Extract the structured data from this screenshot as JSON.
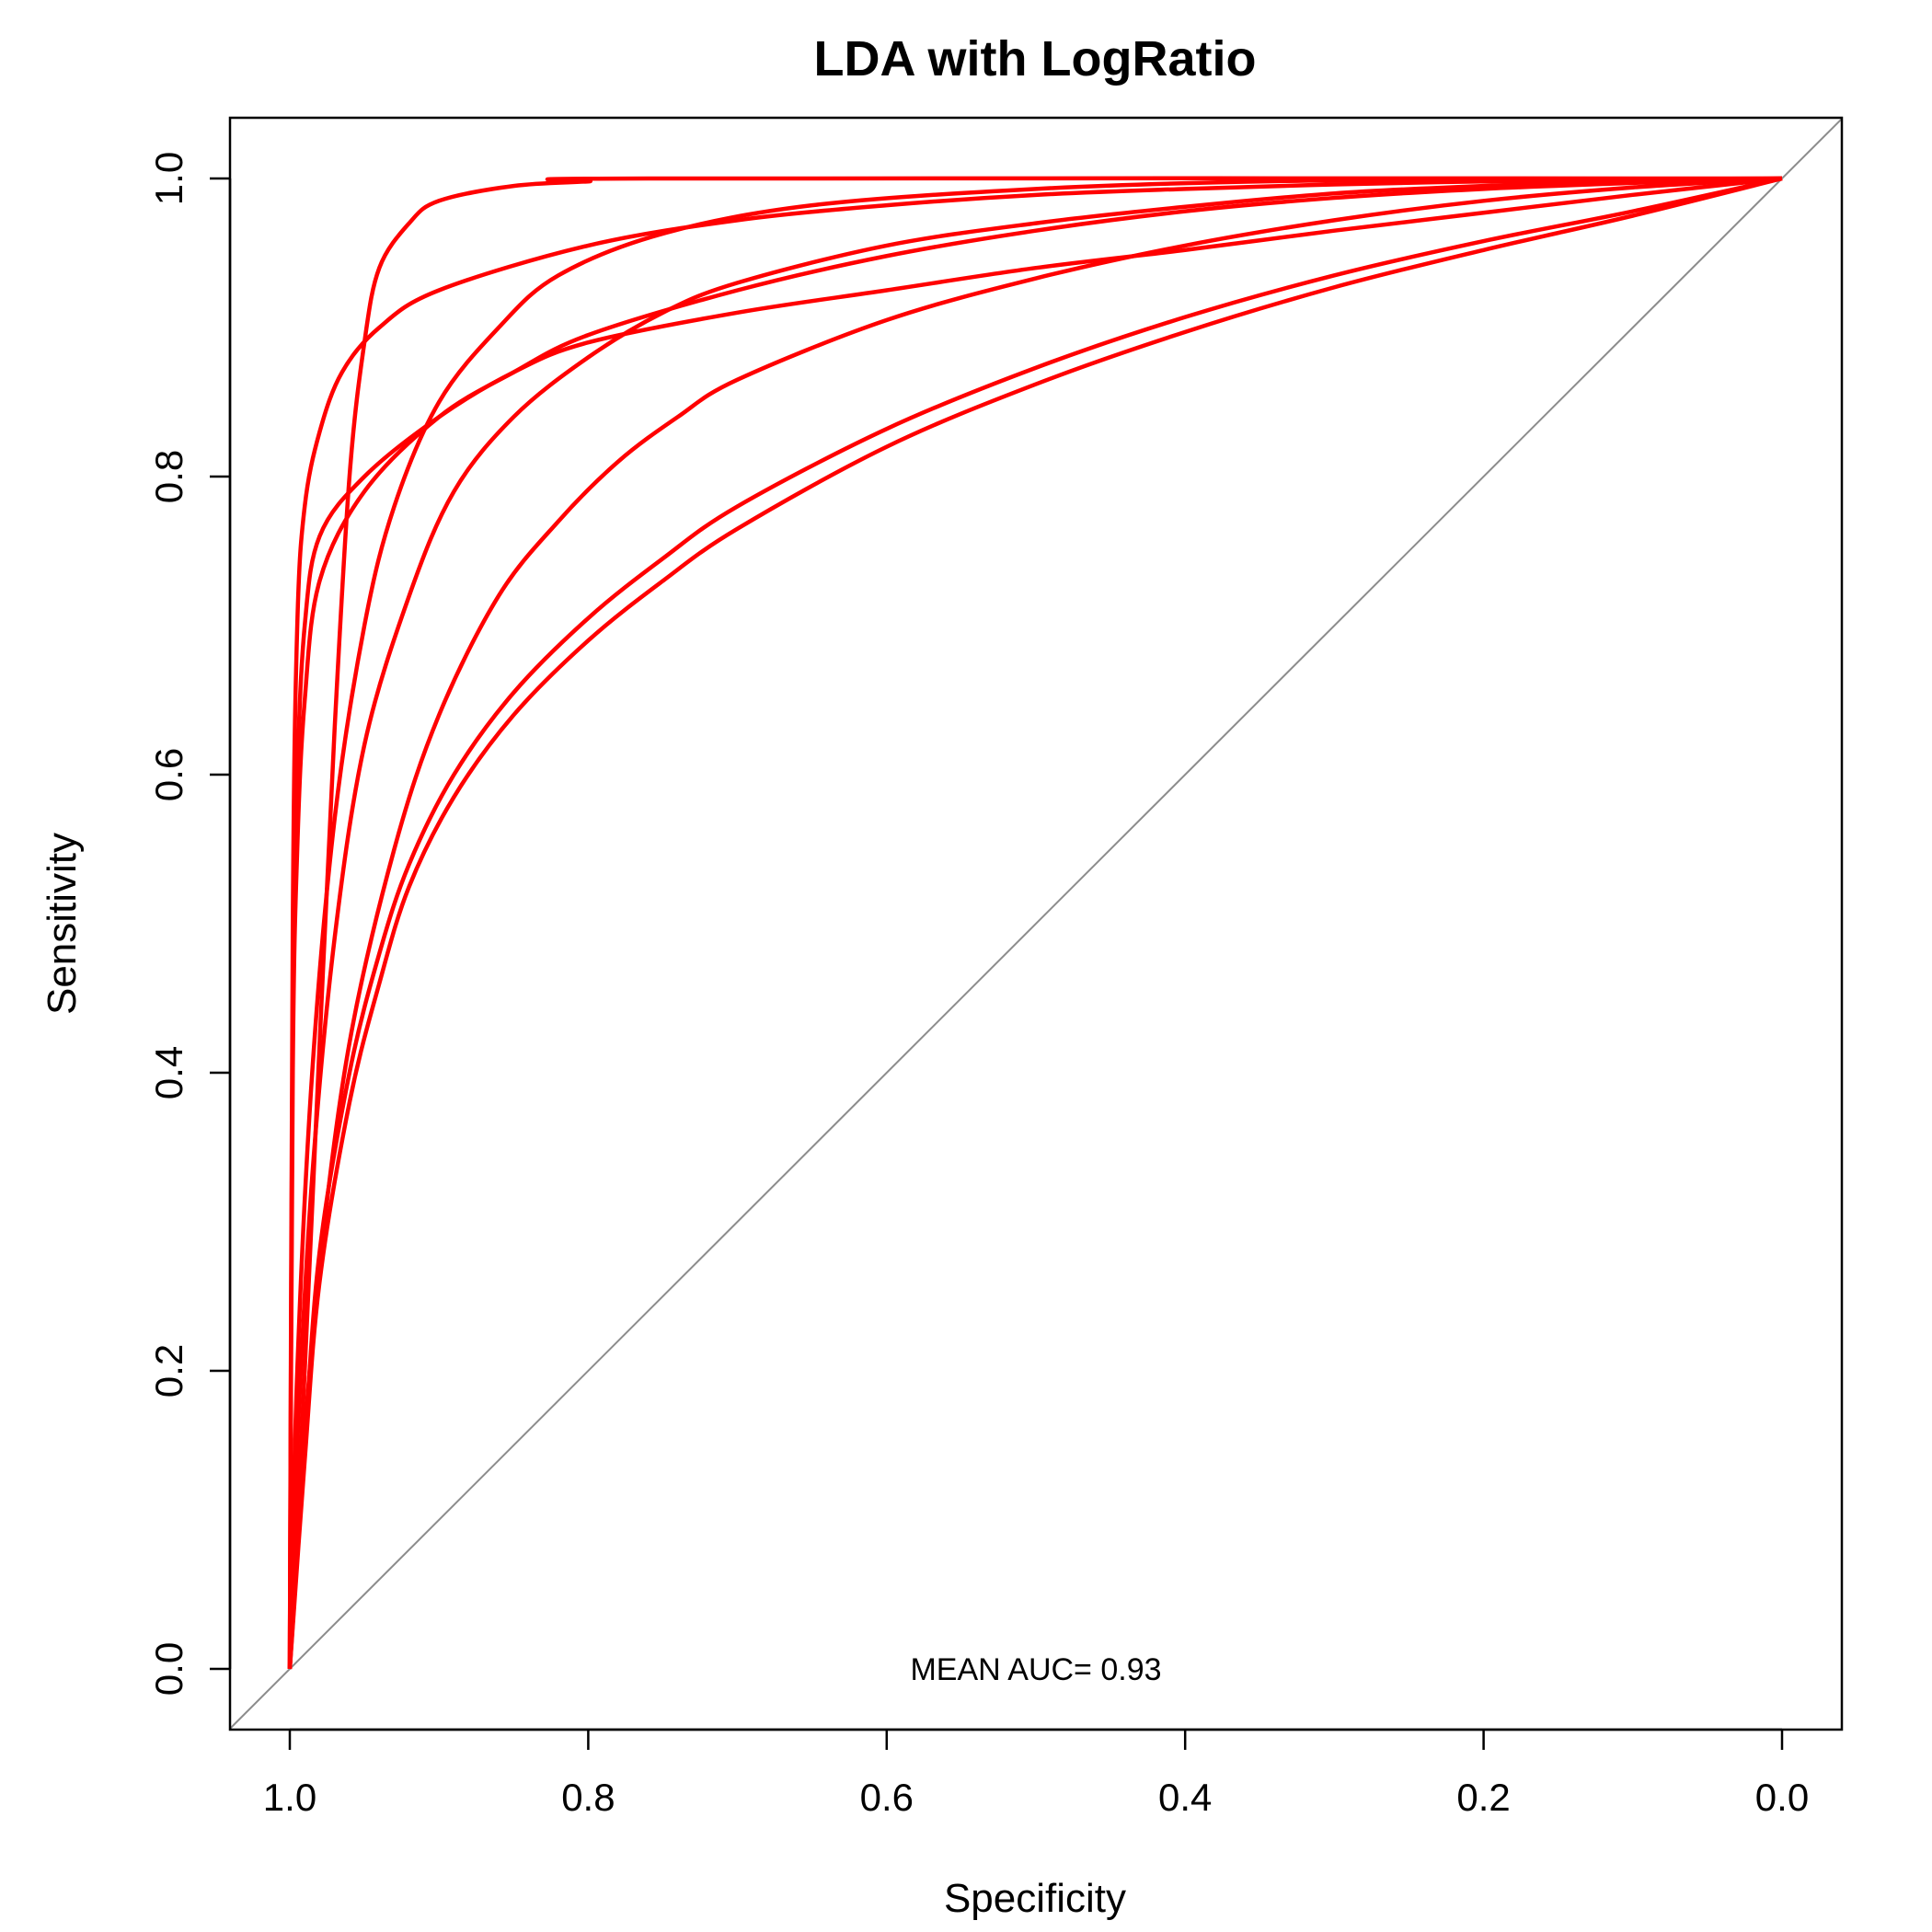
{
  "chart_data": {
    "type": "line",
    "title": "LDA with LogRatio",
    "xlabel": "Specificity",
    "ylabel": "Sensitivity",
    "xlim": [
      1.0,
      0.0
    ],
    "ylim": [
      0.0,
      1.0
    ],
    "x_reversed": true,
    "grid": false,
    "legend": "none",
    "x_ticks": [
      "1.0",
      "0.8",
      "0.6",
      "0.4",
      "0.2",
      "0.0"
    ],
    "y_ticks": [
      "0.0",
      "0.2",
      "0.4",
      "0.6",
      "0.8",
      "1.0"
    ],
    "x_tick_values": [
      1.0,
      0.8,
      0.6,
      0.4,
      0.2,
      0.0
    ],
    "y_tick_values": [
      0.0,
      0.2,
      0.4,
      0.6,
      0.8,
      1.0
    ],
    "annotation": "MEAN AUC= 0.93",
    "annotation_position": {
      "specificity": 0.5,
      "sensitivity": 0.0
    },
    "line_color": "#ff0000",
    "reference_line_color": "#8c8c8c",
    "reference_line": [
      [
        1.0,
        0.0
      ],
      [
        0.0,
        1.0
      ]
    ],
    "series": [
      {
        "values": [
          [
            1.0,
            0.0
          ],
          [
            0.998,
            0.5
          ],
          [
            0.995,
            0.7
          ],
          [
            0.99,
            0.78
          ],
          [
            0.98,
            0.83
          ],
          [
            0.965,
            0.87
          ],
          [
            0.94,
            0.9
          ],
          [
            0.9,
            0.925
          ],
          [
            0.8,
            0.955
          ],
          [
            0.7,
            0.972
          ],
          [
            0.6,
            0.982
          ],
          [
            0.5,
            0.989
          ],
          [
            0.4,
            0.993
          ],
          [
            0.3,
            0.996
          ],
          [
            0.2,
            0.998
          ],
          [
            0.1,
            0.999
          ],
          [
            0.0,
            1.0
          ]
        ]
      },
      {
        "values": [
          [
            1.0,
            0.0
          ],
          [
            0.99,
            0.2
          ],
          [
            0.98,
            0.42
          ],
          [
            0.97,
            0.63
          ],
          [
            0.96,
            0.8
          ],
          [
            0.95,
            0.89
          ],
          [
            0.94,
            0.94
          ],
          [
            0.92,
            0.97
          ],
          [
            0.9,
            0.985
          ],
          [
            0.85,
            0.995
          ],
          [
            0.8,
            0.998
          ],
          [
            0.76,
            1.0
          ],
          [
            0.0,
            1.0
          ]
        ]
      },
      {
        "values": [
          [
            1.0,
            0.0
          ],
          [
            0.998,
            0.45
          ],
          [
            0.995,
            0.6
          ],
          [
            0.99,
            0.7
          ],
          [
            0.98,
            0.76
          ],
          [
            0.95,
            0.8
          ],
          [
            0.9,
            0.84
          ],
          [
            0.85,
            0.87
          ],
          [
            0.8,
            0.89
          ],
          [
            0.7,
            0.91
          ],
          [
            0.6,
            0.925
          ],
          [
            0.5,
            0.94
          ],
          [
            0.4,
            0.952
          ],
          [
            0.3,
            0.965
          ],
          [
            0.2,
            0.977
          ],
          [
            0.1,
            0.989
          ],
          [
            0.0,
            1.0
          ]
        ]
      },
      {
        "values": [
          [
            1.0,
            0.0
          ],
          [
            0.998,
            0.4
          ],
          [
            0.995,
            0.55
          ],
          [
            0.99,
            0.65
          ],
          [
            0.98,
            0.73
          ],
          [
            0.95,
            0.79
          ],
          [
            0.9,
            0.84
          ],
          [
            0.85,
            0.87
          ],
          [
            0.8,
            0.895
          ],
          [
            0.7,
            0.925
          ],
          [
            0.6,
            0.948
          ],
          [
            0.5,
            0.965
          ],
          [
            0.4,
            0.978
          ],
          [
            0.3,
            0.987
          ],
          [
            0.2,
            0.993
          ],
          [
            0.1,
            0.997
          ],
          [
            0.0,
            1.0
          ]
        ]
      },
      {
        "values": [
          [
            1.0,
            0.0
          ],
          [
            0.995,
            0.2
          ],
          [
            0.985,
            0.4
          ],
          [
            0.97,
            0.57
          ],
          [
            0.95,
            0.7
          ],
          [
            0.93,
            0.78
          ],
          [
            0.9,
            0.85
          ],
          [
            0.86,
            0.9
          ],
          [
            0.82,
            0.935
          ],
          [
            0.75,
            0.963
          ],
          [
            0.65,
            0.982
          ],
          [
            0.5,
            0.993
          ],
          [
            0.35,
            0.998
          ],
          [
            0.2,
            0.999
          ],
          [
            0.0,
            1.0
          ]
        ]
      },
      {
        "values": [
          [
            1.0,
            0.0
          ],
          [
            0.995,
            0.15
          ],
          [
            0.985,
            0.33
          ],
          [
            0.97,
            0.49
          ],
          [
            0.95,
            0.62
          ],
          [
            0.92,
            0.72
          ],
          [
            0.89,
            0.79
          ],
          [
            0.85,
            0.84
          ],
          [
            0.8,
            0.88
          ],
          [
            0.75,
            0.91
          ],
          [
            0.7,
            0.93
          ],
          [
            0.6,
            0.955
          ],
          [
            0.5,
            0.97
          ],
          [
            0.4,
            0.981
          ],
          [
            0.3,
            0.99
          ],
          [
            0.2,
            0.995
          ],
          [
            0.1,
            0.998
          ],
          [
            0.0,
            1.0
          ]
        ]
      },
      {
        "values": [
          [
            1.0,
            0.0
          ],
          [
            0.993,
            0.12
          ],
          [
            0.98,
            0.27
          ],
          [
            0.96,
            0.42
          ],
          [
            0.93,
            0.55
          ],
          [
            0.9,
            0.64
          ],
          [
            0.86,
            0.72
          ],
          [
            0.82,
            0.77
          ],
          [
            0.78,
            0.81
          ],
          [
            0.74,
            0.84
          ],
          [
            0.7,
            0.865
          ],
          [
            0.6,
            0.905
          ],
          [
            0.5,
            0.933
          ],
          [
            0.4,
            0.955
          ],
          [
            0.3,
            0.972
          ],
          [
            0.2,
            0.985
          ],
          [
            0.1,
            0.994
          ],
          [
            0.0,
            1.0
          ]
        ]
      },
      {
        "values": [
          [
            1.0,
            0.0
          ],
          [
            0.99,
            0.15
          ],
          [
            0.98,
            0.28
          ],
          [
            0.96,
            0.4
          ],
          [
            0.94,
            0.48
          ],
          [
            0.92,
            0.54
          ],
          [
            0.89,
            0.6
          ],
          [
            0.85,
            0.655
          ],
          [
            0.8,
            0.705
          ],
          [
            0.75,
            0.745
          ],
          [
            0.7,
            0.78
          ],
          [
            0.6,
            0.832
          ],
          [
            0.5,
            0.873
          ],
          [
            0.4,
            0.907
          ],
          [
            0.3,
            0.935
          ],
          [
            0.2,
            0.958
          ],
          [
            0.1,
            0.978
          ],
          [
            0.0,
            1.0
          ]
        ]
      },
      {
        "values": [
          [
            1.0,
            0.0
          ],
          [
            0.99,
            0.14
          ],
          [
            0.98,
            0.26
          ],
          [
            0.96,
            0.38
          ],
          [
            0.94,
            0.46
          ],
          [
            0.92,
            0.525
          ],
          [
            0.89,
            0.585
          ],
          [
            0.85,
            0.64
          ],
          [
            0.8,
            0.69
          ],
          [
            0.75,
            0.73
          ],
          [
            0.7,
            0.765
          ],
          [
            0.6,
            0.82
          ],
          [
            0.5,
            0.862
          ],
          [
            0.4,
            0.897
          ],
          [
            0.3,
            0.927
          ],
          [
            0.2,
            0.952
          ],
          [
            0.1,
            0.975
          ],
          [
            0.0,
            1.0
          ]
        ]
      }
    ]
  }
}
